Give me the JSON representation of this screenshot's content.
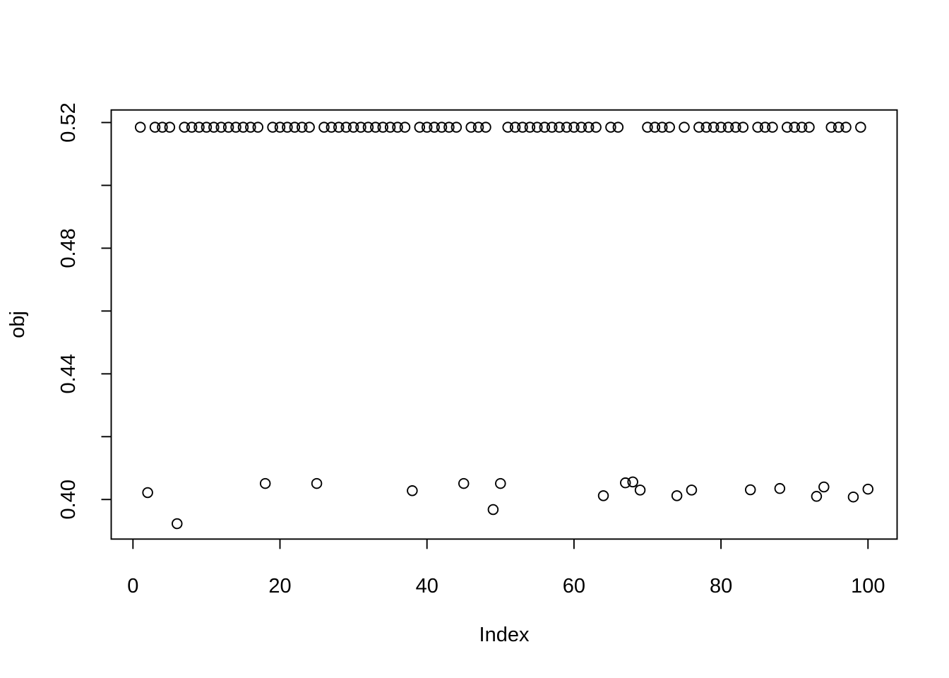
{
  "chart_data": {
    "type": "scatter",
    "title": "",
    "xlabel": "Index",
    "ylabel": "obj",
    "marker": "open-circle",
    "grid": false,
    "legend": null,
    "point_color": "#000000",
    "background_color": "#ffffff",
    "x_ticks": [
      0,
      20,
      40,
      60,
      80,
      100
    ],
    "x_tick_labels": [
      "0",
      "20",
      "40",
      "60",
      "80",
      "100"
    ],
    "y_ticks": [
      0.4,
      0.42,
      0.44,
      0.46,
      0.48,
      0.5,
      0.52
    ],
    "y_labeled_ticks": [
      {
        "value": 0.4,
        "label": "0.40"
      },
      {
        "value": 0.44,
        "label": "0.44"
      },
      {
        "value": 0.48,
        "label": "0.48"
      },
      {
        "value": 0.52,
        "label": "0.52"
      }
    ],
    "xlim": [
      -2.96,
      103.96
    ],
    "ylim": [
      0.3874,
      0.524
    ],
    "x": [
      1,
      2,
      3,
      4,
      5,
      6,
      7,
      8,
      9,
      10,
      11,
      12,
      13,
      14,
      15,
      16,
      17,
      18,
      19,
      20,
      21,
      22,
      23,
      24,
      25,
      26,
      27,
      28,
      29,
      30,
      31,
      32,
      33,
      34,
      35,
      36,
      37,
      38,
      39,
      40,
      41,
      42,
      43,
      44,
      45,
      46,
      47,
      48,
      49,
      50,
      51,
      52,
      53,
      54,
      55,
      56,
      57,
      58,
      59,
      60,
      61,
      62,
      63,
      64,
      65,
      66,
      67,
      68,
      69,
      70,
      71,
      72,
      73,
      74,
      75,
      76,
      77,
      78,
      79,
      80,
      81,
      82,
      83,
      84,
      85,
      86,
      87,
      88,
      89,
      90,
      91,
      92,
      93,
      94,
      95,
      96,
      97,
      98,
      99,
      100
    ],
    "y": [
      0.5185,
      0.4022,
      0.5185,
      0.5185,
      0.5185,
      0.3923,
      0.5185,
      0.5185,
      0.5185,
      0.5185,
      0.5185,
      0.5185,
      0.5185,
      0.5185,
      0.5185,
      0.5185,
      0.5185,
      0.4051,
      0.5185,
      0.5185,
      0.5185,
      0.5185,
      0.5185,
      0.5185,
      0.4051,
      0.5185,
      0.5185,
      0.5185,
      0.5185,
      0.5185,
      0.5185,
      0.5185,
      0.5185,
      0.5185,
      0.5185,
      0.5185,
      0.5185,
      0.4028,
      0.5185,
      0.5185,
      0.5185,
      0.5185,
      0.5185,
      0.5185,
      0.4051,
      0.5185,
      0.5185,
      0.5185,
      0.3968,
      0.4051,
      0.5185,
      0.5185,
      0.5185,
      0.5185,
      0.5185,
      0.5185,
      0.5185,
      0.5185,
      0.5185,
      0.5185,
      0.5185,
      0.5185,
      0.5185,
      0.4012,
      0.5185,
      0.5185,
      0.4053,
      0.4056,
      0.403,
      0.5185,
      0.5185,
      0.5185,
      0.5185,
      0.4012,
      0.5185,
      0.403,
      0.5185,
      0.5185,
      0.5185,
      0.5185,
      0.5185,
      0.5185,
      0.5185,
      0.4031,
      0.5185,
      0.5185,
      0.5185,
      0.4035,
      0.5185,
      0.5185,
      0.5185,
      0.5185,
      0.401,
      0.404,
      0.5185,
      0.5185,
      0.5185,
      0.4008,
      0.5185,
      0.4033
    ]
  }
}
